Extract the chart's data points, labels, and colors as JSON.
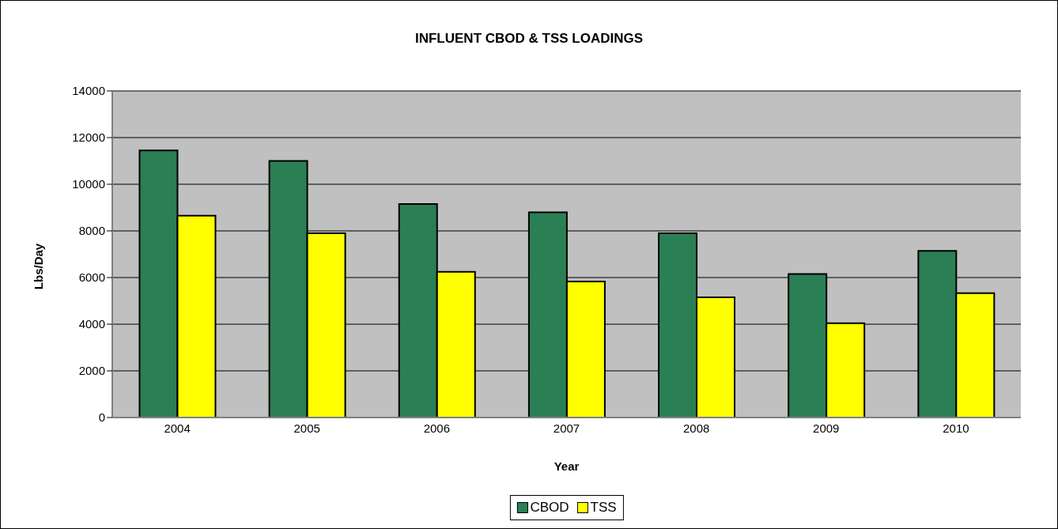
{
  "chart_data": {
    "type": "bar",
    "title": "INFLUENT CBOD & TSS LOADINGS",
    "xlabel": "Year",
    "ylabel": "Lbs/Day",
    "categories": [
      "2004",
      "2005",
      "2006",
      "2007",
      "2008",
      "2009",
      "2010"
    ],
    "series": [
      {
        "name": "CBOD",
        "color": "#2a7f55",
        "values": [
          11450,
          11000,
          9150,
          8800,
          7900,
          6150,
          7140
        ]
      },
      {
        "name": "TSS",
        "color": "#ffff00",
        "values": [
          8650,
          7900,
          6250,
          5830,
          5150,
          4040,
          5330
        ]
      }
    ],
    "ylim": [
      0,
      14000
    ],
    "yticks": [
      0,
      2000,
      4000,
      6000,
      8000,
      10000,
      12000,
      14000
    ],
    "grid": "y",
    "legend": "bottom"
  }
}
